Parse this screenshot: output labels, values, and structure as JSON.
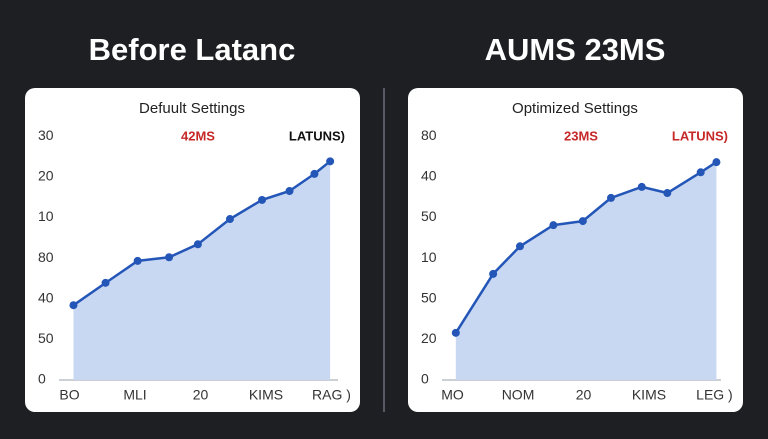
{
  "chart_data": [
    {
      "type": "line",
      "title": "Before Latanc",
      "subtitle": "Defuult Settings",
      "annotations": [
        {
          "text": "42MS",
          "color": "#c62828"
        },
        {
          "text": "LATUNS)",
          "color": "#111111"
        }
      ],
      "x": [
        0.06,
        0.55,
        1.04,
        1.52,
        1.96,
        2.45,
        2.94,
        3.36,
        3.74,
        3.98
      ],
      "values": [
        1.84,
        2.39,
        2.93,
        3.02,
        3.34,
        3.96,
        4.43,
        4.65,
        5.07,
        5.38
      ],
      "color": "#2456b8",
      "area_color": "#c9d8f2",
      "xlim": [
        -0.1,
        4.1
      ],
      "ylim": [
        0,
        6.2
      ],
      "xticks": [
        {
          "value": 0,
          "label": "BO"
        },
        {
          "value": 1,
          "label": "MLI"
        },
        {
          "value": 2,
          "label": "20"
        },
        {
          "value": 3,
          "label": "KIMS"
        },
        {
          "value": 4,
          "label": "RAG )"
        }
      ],
      "yticks": [
        {
          "value": 0,
          "label": "0"
        },
        {
          "value": 1,
          "label": "50"
        },
        {
          "value": 2,
          "label": "40"
        },
        {
          "value": 3,
          "label": "80"
        },
        {
          "value": 4,
          "label": "10"
        },
        {
          "value": 5,
          "label": "20"
        },
        {
          "value": 6,
          "label": "30"
        }
      ]
    },
    {
      "type": "line",
      "title": "AUMS 23MS",
      "subtitle": "Optimized Settings",
      "annotations": [
        {
          "text": "23MS",
          "color": "#c62828"
        },
        {
          "text": "LATUNS)",
          "color": "#c62828"
        }
      ],
      "x": [
        0.05,
        0.62,
        1.03,
        1.54,
        1.99,
        2.42,
        2.89,
        3.28,
        3.79,
        4.03
      ],
      "values": [
        1.16,
        2.61,
        3.29,
        3.81,
        3.91,
        4.48,
        4.75,
        4.6,
        5.11,
        5.36
      ],
      "color": "#2456b8",
      "area_color": "#c9d8f2",
      "xlim": [
        -0.1,
        4.1
      ],
      "ylim": [
        0,
        6.2
      ],
      "xticks": [
        {
          "value": 0,
          "label": "MO"
        },
        {
          "value": 1,
          "label": "NOM"
        },
        {
          "value": 2,
          "label": "20"
        },
        {
          "value": 3,
          "label": "KIMS"
        },
        {
          "value": 4,
          "label": "LEG )"
        }
      ],
      "yticks": [
        {
          "value": 0,
          "label": "0"
        },
        {
          "value": 1,
          "label": "20"
        },
        {
          "value": 2,
          "label": "50"
        },
        {
          "value": 3,
          "label": "10"
        },
        {
          "value": 4,
          "label": "50"
        },
        {
          "value": 5,
          "label": "40"
        },
        {
          "value": 6,
          "label": "80"
        }
      ]
    }
  ]
}
